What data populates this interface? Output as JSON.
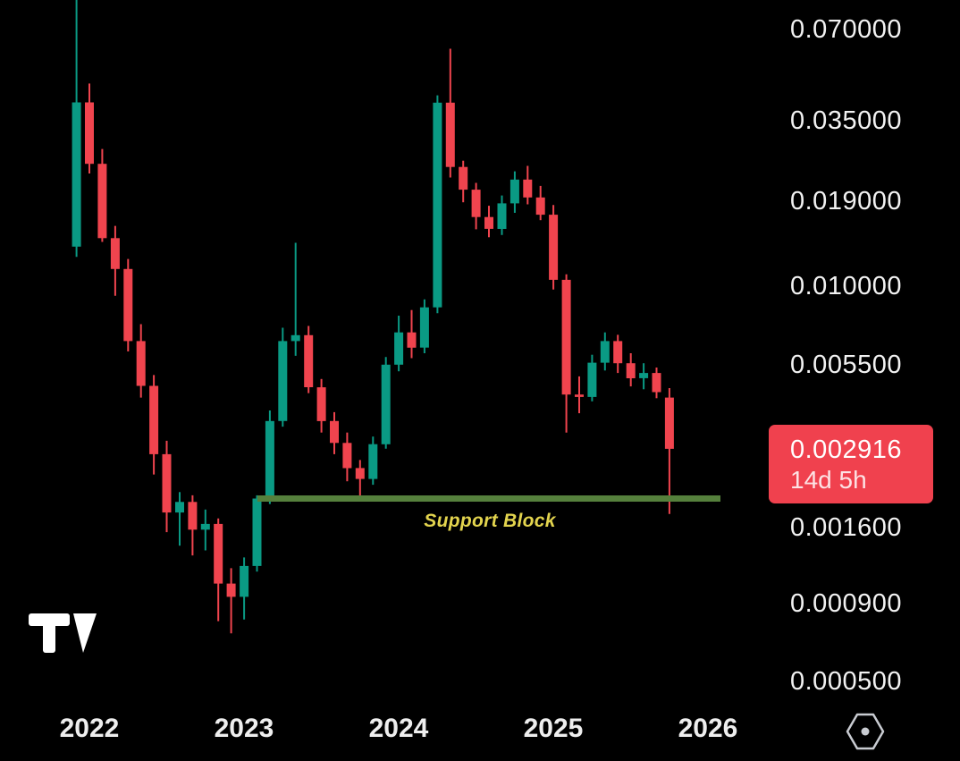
{
  "chart_data": {
    "type": "candlestick",
    "scale": "log",
    "title": "",
    "ylim": [
      0.0005,
      0.088
    ],
    "grid": false,
    "x_axis": {
      "labels": [
        "2022",
        "2023",
        "2024",
        "2025",
        "2026"
      ]
    },
    "y_axis": {
      "labels": [
        "0.070000",
        "0.035000",
        "0.019000",
        "0.010000",
        "0.005500",
        "0.001600",
        "0.000900",
        "0.000500"
      ],
      "prices": [
        0.07,
        0.035,
        0.019,
        0.01,
        0.0055,
        0.0016,
        0.0009,
        0.0005
      ]
    },
    "candles": [
      {
        "t": "2021-12",
        "o": 0.0135,
        "h": 0.088,
        "l": 0.0125,
        "c": 0.0403
      },
      {
        "t": "2022-01",
        "o": 0.0403,
        "h": 0.0465,
        "l": 0.0235,
        "c": 0.0253
      },
      {
        "t": "2022-02",
        "o": 0.0253,
        "h": 0.0283,
        "l": 0.014,
        "c": 0.0144
      },
      {
        "t": "2022-03",
        "o": 0.0144,
        "h": 0.0158,
        "l": 0.0093,
        "c": 0.0114
      },
      {
        "t": "2022-04",
        "o": 0.0114,
        "h": 0.0123,
        "l": 0.0061,
        "c": 0.0066
      },
      {
        "t": "2022-05",
        "o": 0.0066,
        "h": 0.0075,
        "l": 0.0043,
        "c": 0.0047
      },
      {
        "t": "2022-06",
        "o": 0.0047,
        "h": 0.0051,
        "l": 0.0024,
        "c": 0.0028
      },
      {
        "t": "2022-07",
        "o": 0.0028,
        "h": 0.0031,
        "l": 0.00155,
        "c": 0.0018
      },
      {
        "t": "2022-08",
        "o": 0.0018,
        "h": 0.0021,
        "l": 0.0014,
        "c": 0.00195
      },
      {
        "t": "2022-09",
        "o": 0.00195,
        "h": 0.00205,
        "l": 0.0013,
        "c": 0.00158
      },
      {
        "t": "2022-10",
        "o": 0.00158,
        "h": 0.00184,
        "l": 0.00135,
        "c": 0.00165
      },
      {
        "t": "2022-11",
        "o": 0.00165,
        "h": 0.00172,
        "l": 0.00079,
        "c": 0.00105
      },
      {
        "t": "2022-12",
        "o": 0.00105,
        "h": 0.00118,
        "l": 0.00072,
        "c": 0.00095
      },
      {
        "t": "2023-01",
        "o": 0.00095,
        "h": 0.00128,
        "l": 0.0008,
        "c": 0.0012
      },
      {
        "t": "2023-02",
        "o": 0.0012,
        "h": 0.00205,
        "l": 0.00115,
        "c": 0.002
      },
      {
        "t": "2023-03",
        "o": 0.002,
        "h": 0.0039,
        "l": 0.00192,
        "c": 0.0036
      },
      {
        "t": "2023-04",
        "o": 0.0036,
        "h": 0.0073,
        "l": 0.00345,
        "c": 0.0066
      },
      {
        "t": "2023-05",
        "o": 0.0066,
        "h": 0.0139,
        "l": 0.0059,
        "c": 0.0069
      },
      {
        "t": "2023-06",
        "o": 0.0069,
        "h": 0.0074,
        "l": 0.00445,
        "c": 0.00465
      },
      {
        "t": "2023-07",
        "o": 0.00465,
        "h": 0.00495,
        "l": 0.0033,
        "c": 0.0036
      },
      {
        "t": "2023-08",
        "o": 0.0036,
        "h": 0.00385,
        "l": 0.0028,
        "c": 0.00305
      },
      {
        "t": "2023-09",
        "o": 0.00305,
        "h": 0.0033,
        "l": 0.00228,
        "c": 0.00252
      },
      {
        "t": "2023-10",
        "o": 0.00252,
        "h": 0.00268,
        "l": 0.00198,
        "c": 0.00232
      },
      {
        "t": "2023-11",
        "o": 0.00232,
        "h": 0.0032,
        "l": 0.00222,
        "c": 0.00302
      },
      {
        "t": "2023-12",
        "o": 0.00302,
        "h": 0.00585,
        "l": 0.00292,
        "c": 0.00552
      },
      {
        "t": "2024-01",
        "o": 0.00552,
        "h": 0.008,
        "l": 0.00525,
        "c": 0.00705
      },
      {
        "t": "2024-02",
        "o": 0.00705,
        "h": 0.00835,
        "l": 0.0058,
        "c": 0.00628
      },
      {
        "t": "2024-03",
        "o": 0.00628,
        "h": 0.00905,
        "l": 0.00602,
        "c": 0.00852
      },
      {
        "t": "2024-04",
        "o": 0.00852,
        "h": 0.0425,
        "l": 0.00815,
        "c": 0.0402
      },
      {
        "t": "2024-05",
        "o": 0.0402,
        "h": 0.0605,
        "l": 0.0228,
        "c": 0.0247
      },
      {
        "t": "2024-06",
        "o": 0.0247,
        "h": 0.0259,
        "l": 0.0189,
        "c": 0.0208
      },
      {
        "t": "2024-07",
        "o": 0.0208,
        "h": 0.0219,
        "l": 0.0154,
        "c": 0.0169
      },
      {
        "t": "2024-08",
        "o": 0.0169,
        "h": 0.0184,
        "l": 0.0145,
        "c": 0.01545
      },
      {
        "t": "2024-09",
        "o": 0.01545,
        "h": 0.0199,
        "l": 0.01475,
        "c": 0.01875
      },
      {
        "t": "2024-10",
        "o": 0.01875,
        "h": 0.0239,
        "l": 0.01745,
        "c": 0.02245
      },
      {
        "t": "2024-11",
        "o": 0.02245,
        "h": 0.0249,
        "l": 0.0186,
        "c": 0.0196
      },
      {
        "t": "2024-12",
        "o": 0.0196,
        "h": 0.0214,
        "l": 0.0165,
        "c": 0.0172
      },
      {
        "t": "2025-01",
        "o": 0.0172,
        "h": 0.0185,
        "l": 0.00975,
        "c": 0.0105
      },
      {
        "t": "2025-02",
        "o": 0.0105,
        "h": 0.01095,
        "l": 0.0033,
        "c": 0.0044
      },
      {
        "t": "2025-03",
        "o": 0.0044,
        "h": 0.00505,
        "l": 0.00382,
        "c": 0.00432
      },
      {
        "t": "2025-04",
        "o": 0.00432,
        "h": 0.00595,
        "l": 0.00418,
        "c": 0.0056
      },
      {
        "t": "2025-05",
        "o": 0.0056,
        "h": 0.00705,
        "l": 0.00528,
        "c": 0.0066
      },
      {
        "t": "2025-06",
        "o": 0.0066,
        "h": 0.00692,
        "l": 0.00518,
        "c": 0.00558
      },
      {
        "t": "2025-07",
        "o": 0.00558,
        "h": 0.00602,
        "l": 0.00468,
        "c": 0.00498
      },
      {
        "t": "2025-08",
        "o": 0.00498,
        "h": 0.00558,
        "l": 0.00458,
        "c": 0.00518
      },
      {
        "t": "2025-09",
        "o": 0.00518,
        "h": 0.0054,
        "l": 0.00428,
        "c": 0.00448
      },
      {
        "t": "2025-10",
        "o": 0.0043,
        "h": 0.00462,
        "l": 0.00178,
        "c": 0.002916
      }
    ],
    "support_block": {
      "label": "Support Block",
      "price": 0.002
    },
    "last_price": {
      "value": "0.002916",
      "countdown": "14d 5h"
    },
    "colors": {
      "background": "#000000",
      "up": "#0a9a84",
      "down": "#f0444e",
      "badge": "#f0414e",
      "support": "#55803c",
      "support_label": "#e3d44e",
      "axis_text": "#f2f2f2"
    },
    "icons": {
      "watermark": "tradingview-logo",
      "axis_corner": "hexagon-dot-icon"
    }
  }
}
